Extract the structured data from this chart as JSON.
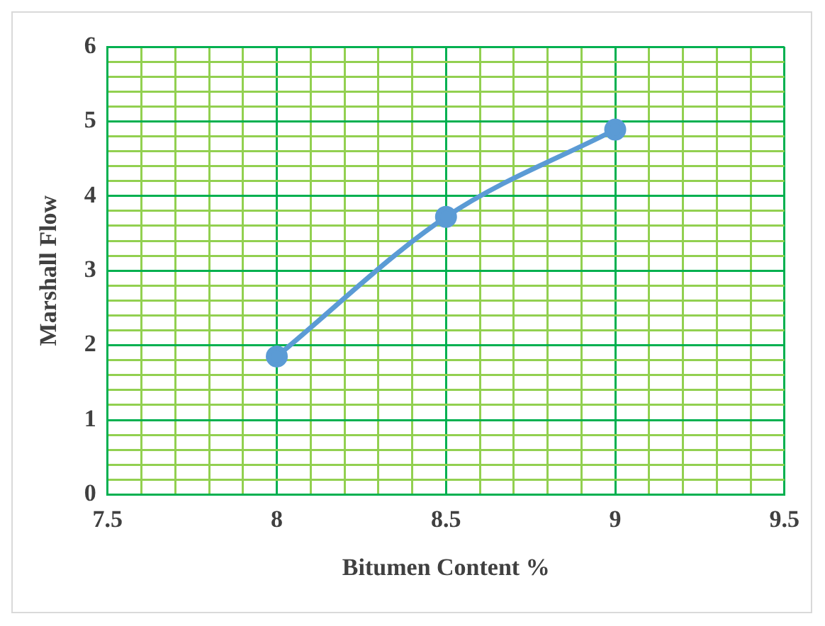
{
  "chart_data": {
    "type": "line",
    "xlabel": "Bitumen Content %",
    "ylabel": "Marshall Flow",
    "x": [
      8,
      8.5,
      9
    ],
    "series": [
      {
        "color": "#5b9bd5",
        "values": [
          1.85,
          3.72,
          4.89
        ]
      }
    ],
    "xlim": [
      7.5,
      9.5
    ],
    "xticks": [
      7.5,
      {
        "value": 7.6,
        "label": null
      },
      {
        "value": 7.7,
        "label": null
      },
      {
        "value": 7.8,
        "label": null
      },
      {
        "value": 7.9,
        "label": null
      },
      8,
      {
        "value": 8.1,
        "label": null
      },
      {
        "value": 8.2,
        "label": null
      },
      {
        "value": 8.3,
        "label": null
      },
      {
        "value": 8.4,
        "label": null
      },
      8.5,
      {
        "value": 8.6,
        "label": null
      },
      {
        "value": 8.7,
        "label": null
      },
      {
        "value": 8.8,
        "label": null
      },
      {
        "value": 8.9,
        "label": null
      },
      9,
      {
        "value": 9.1,
        "label": null
      },
      {
        "value": 9.2,
        "label": null
      },
      {
        "value": 9.3,
        "label": null
      },
      {
        "value": 9.4,
        "label": null
      },
      9.5
    ],
    "ylim": [
      0,
      6
    ],
    "yticks": [
      0,
      {
        "value": 0.2,
        "label": null
      },
      {
        "value": 0.4,
        "label": null
      },
      {
        "value": 0.6,
        "label": null
      },
      {
        "value": 0.8,
        "label": null
      },
      1,
      {
        "value": 1.2,
        "label": null
      },
      {
        "value": 1.4,
        "label": null
      },
      {
        "value": 1.6,
        "label": null
      },
      {
        "value": 1.8,
        "label": null
      },
      2,
      {
        "value": 2.2,
        "label": null
      },
      {
        "value": 2.4,
        "label": null
      },
      {
        "value": 2.6,
        "label": null
      },
      {
        "value": 2.8,
        "label": null
      },
      3,
      {
        "value": 3.2,
        "label": null
      },
      {
        "value": 3.4,
        "label": null
      },
      {
        "value": 3.6,
        "label": null
      },
      {
        "value": 3.8,
        "label": null
      },
      4,
      {
        "value": 4.2,
        "label": null
      },
      {
        "value": 4.4,
        "label": null
      },
      {
        "value": 4.6,
        "label": null
      },
      {
        "value": 4.8,
        "label": null
      },
      5,
      {
        "value": 5.2,
        "label": null
      },
      {
        "value": 5.4,
        "label": null
      },
      {
        "value": 5.6,
        "label": null
      },
      {
        "value": 5.8,
        "label": null
      },
      6
    ],
    "grid": true,
    "legend": false,
    "marker": "circle",
    "line_style": "solid"
  }
}
